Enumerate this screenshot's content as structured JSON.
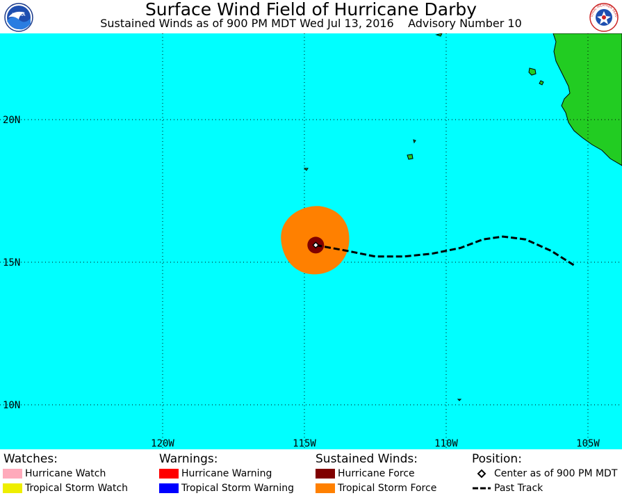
{
  "header": {
    "title": "Surface Wind Field of Hurricane Darby",
    "subtitle": "Sustained Winds as of 900 PM MDT Wed Jul 13, 2016    Advisory Number 10",
    "left_logo": {
      "text": "NOAA",
      "icon": "noaa-logo"
    },
    "right_logo": {
      "text": "NATIONAL WEATHER SERVICE",
      "icon": "nws-logo"
    }
  },
  "map": {
    "ocean_color": "#00ffff",
    "land_color": "#22cc22",
    "grid_color": "#000000",
    "lat_labels": [
      "20N",
      "15N",
      "10N"
    ],
    "lon_labels": [
      "120W",
      "115W",
      "110W",
      "105W"
    ],
    "storm_center": {
      "lat": 15.6,
      "lon": -114.6
    },
    "tropical_storm_force_color": "#ff8000",
    "hurricane_force_color": "#800000",
    "past_track": [
      {
        "lat": 15.6,
        "lon": -114.6
      },
      {
        "lat": 15.4,
        "lon": -113.5
      },
      {
        "lat": 15.2,
        "lon": -112.5
      },
      {
        "lat": 15.2,
        "lon": -111.5
      },
      {
        "lat": 15.3,
        "lon": -110.5
      },
      {
        "lat": 15.5,
        "lon": -109.5
      },
      {
        "lat": 15.8,
        "lon": -108.7
      },
      {
        "lat": 15.9,
        "lon": -108.0
      },
      {
        "lat": 15.8,
        "lon": -107.2
      },
      {
        "lat": 15.4,
        "lon": -106.3
      },
      {
        "lat": 14.9,
        "lon": -105.5
      }
    ]
  },
  "legend": {
    "watches": {
      "heading": "Watches:",
      "items": [
        {
          "label": "Hurricane Watch",
          "color": "#ffaabb"
        },
        {
          "label": "Tropical Storm Watch",
          "color": "#eeee00"
        }
      ]
    },
    "warnings": {
      "heading": "Warnings:",
      "items": [
        {
          "label": "Hurricane Warning",
          "color": "#ff0000"
        },
        {
          "label": "Tropical Storm Warning",
          "color": "#0000ff"
        }
      ]
    },
    "winds": {
      "heading": "Sustained Winds:",
      "items": [
        {
          "label": "Hurricane Force",
          "color": "#800000"
        },
        {
          "label": "Tropical Storm Force",
          "color": "#ff8000"
        }
      ]
    },
    "position": {
      "heading": "Position:",
      "items": [
        {
          "label": "Center as of 900 PM MDT",
          "icon": "diamond-icon"
        },
        {
          "label": "Past Track",
          "icon": "dashed-line-icon"
        }
      ]
    }
  }
}
